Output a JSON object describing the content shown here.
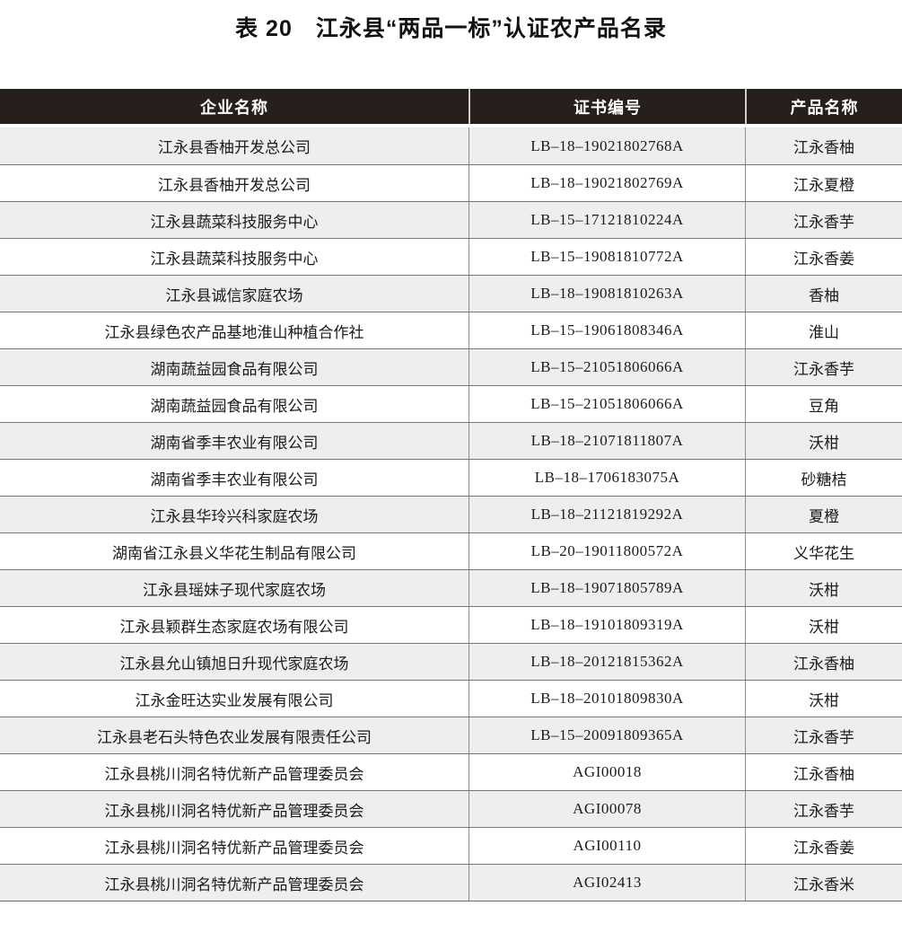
{
  "page": {
    "title": "表 20　江永县“两品一标”认证农产品名录"
  },
  "table": {
    "headers": {
      "enterprise": "企业名称",
      "certificate": "证书编号",
      "product": "产品名称"
    },
    "rows": [
      {
        "enterprise": "江永县香柚开发总公司",
        "certificate": "LB–18–19021802768A",
        "product": "江永香柚"
      },
      {
        "enterprise": "江永县香柚开发总公司",
        "certificate": "LB–18–19021802769A",
        "product": "江永夏橙"
      },
      {
        "enterprise": "江永县蔬菜科技服务中心",
        "certificate": "LB–15–17121810224A",
        "product": "江永香芋"
      },
      {
        "enterprise": "江永县蔬菜科技服务中心",
        "certificate": "LB–15–19081810772A",
        "product": "江永香姜"
      },
      {
        "enterprise": "江永县诚信家庭农场",
        "certificate": "LB–18–19081810263A",
        "product": "香柚"
      },
      {
        "enterprise": "江永县绿色农产品基地淮山种植合作社",
        "certificate": "LB–15–19061808346A",
        "product": "淮山"
      },
      {
        "enterprise": "湖南蔬益园食品有限公司",
        "certificate": "LB–15–21051806066A",
        "product": "江永香芋"
      },
      {
        "enterprise": "湖南蔬益园食品有限公司",
        "certificate": "LB–15–21051806066A",
        "product": "豆角"
      },
      {
        "enterprise": "湖南省季丰农业有限公司",
        "certificate": "LB–18–21071811807A",
        "product": "沃柑"
      },
      {
        "enterprise": "湖南省季丰农业有限公司",
        "certificate": "LB–18–1706183075A",
        "product": "砂糖桔"
      },
      {
        "enterprise": "江永县华玲兴科家庭农场",
        "certificate": "LB–18–21121819292A",
        "product": "夏橙"
      },
      {
        "enterprise": "湖南省江永县义华花生制品有限公司",
        "certificate": "LB–20–19011800572A",
        "product": "义华花生"
      },
      {
        "enterprise": "江永县瑶妹子现代家庭农场",
        "certificate": "LB–18–19071805789A",
        "product": "沃柑"
      },
      {
        "enterprise": "江永县颖群生态家庭农场有限公司",
        "certificate": "LB–18–19101809319A",
        "product": "沃柑"
      },
      {
        "enterprise": "江永县允山镇旭日升现代家庭农场",
        "certificate": "LB–18–20121815362A",
        "product": "江永香柚"
      },
      {
        "enterprise": "江永金旺达实业发展有限公司",
        "certificate": "LB–18–20101809830A",
        "product": "沃柑"
      },
      {
        "enterprise": "江永县老石头特色农业发展有限责任公司",
        "certificate": "LB–15–20091809365A",
        "product": "江永香芋"
      },
      {
        "enterprise": "江永县桃川洞名特优新产品管理委员会",
        "certificate": "AGI00018",
        "product": "江永香柚"
      },
      {
        "enterprise": "江永县桃川洞名特优新产品管理委员会",
        "certificate": "AGI00078",
        "product": "江永香芋"
      },
      {
        "enterprise": "江永县桃川洞名特优新产品管理委员会",
        "certificate": "AGI00110",
        "product": "江永香姜"
      },
      {
        "enterprise": "江永县桃川洞名特优新产品管理委员会",
        "certificate": "AGI02413",
        "product": "江永香米"
      }
    ]
  },
  "colors": {
    "header_bg": "#271f1b",
    "header_text": "#ffffff",
    "row_stripe": "#eeeeee",
    "row_border": "#757575"
  }
}
